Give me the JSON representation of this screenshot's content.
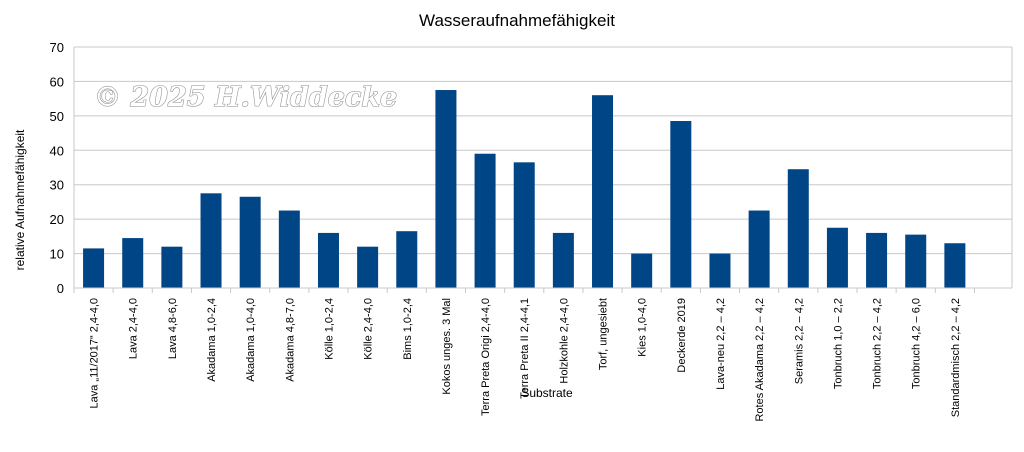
{
  "watermark": "© 2025 H.Widdecke",
  "chart_data": {
    "type": "bar",
    "title": "Wasseraufnahmefähigkeit",
    "xlabel": "Substrate",
    "ylabel": "relative Aufnahmefähigkeit",
    "ylim": [
      0,
      70
    ],
    "yticks": [
      0,
      10,
      20,
      30,
      40,
      50,
      60,
      70
    ],
    "grid": true,
    "bar_color": "#004586",
    "categories": [
      "Lava „11/2017“ 2,4-4,0",
      "Lava 2,4-4,0",
      "Lava 4,8-6,0",
      "Akadama 1,0-2,4",
      "Akadama 1,0-4,0",
      "Akadama 4,8-7,0",
      "Kölle 1,0-2,4",
      "Kölle 2,4-4,0",
      "Bims 1,0-2,4",
      "Kokos unges. 3 Mal",
      "Terra Preta Origi 2,4-4,0",
      "Terra Preta II 2,4-4,1",
      "Holzkohle 2,4-4,0",
      "Torf, ungesiebt",
      "Kies 1,0-4,0",
      "Deckerde 2019",
      "Lava-neu 2,2 – 4,2",
      "Rotes Akadama 2,2 – 4,2",
      "Seramis 2,2 – 4,2",
      "Tonbruch 1,0 – 2,2",
      "Tonbruch 2,2 – 4,2",
      "Tonbruch 4,2 – 6,0",
      "Standardmisch 2,2 – 4,2"
    ],
    "values": [
      11.5,
      14.5,
      12,
      27.5,
      26.5,
      22.5,
      16,
      12,
      16.5,
      57.5,
      39,
      36.5,
      16,
      56,
      10,
      48.5,
      10,
      22.5,
      34.5,
      17.5,
      16,
      15.5,
      13
    ]
  }
}
